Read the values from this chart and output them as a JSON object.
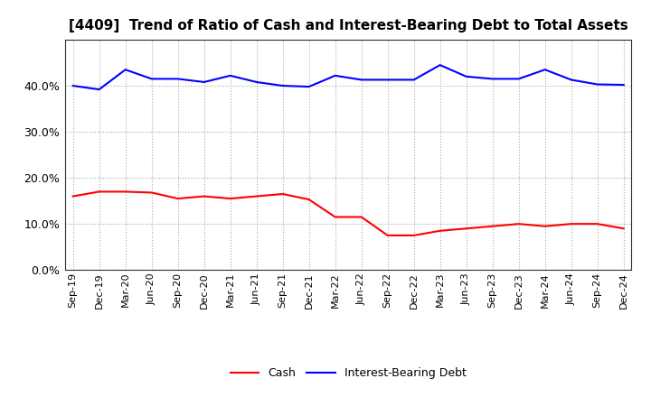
{
  "title": "[4409]  Trend of Ratio of Cash and Interest-Bearing Debt to Total Assets",
  "x_labels": [
    "Sep-19",
    "Dec-19",
    "Mar-20",
    "Jun-20",
    "Sep-20",
    "Dec-20",
    "Mar-21",
    "Jun-21",
    "Sep-21",
    "Dec-21",
    "Mar-22",
    "Jun-22",
    "Sep-22",
    "Dec-22",
    "Mar-23",
    "Jun-23",
    "Sep-23",
    "Dec-23",
    "Mar-24",
    "Jun-24",
    "Sep-24",
    "Dec-24"
  ],
  "cash": [
    0.16,
    0.17,
    0.17,
    0.168,
    0.155,
    0.16,
    0.155,
    0.16,
    0.165,
    0.153,
    0.115,
    0.115,
    0.075,
    0.075,
    0.085,
    0.09,
    0.095,
    0.1,
    0.095,
    0.1,
    0.1,
    0.09
  ],
  "debt": [
    0.4,
    0.392,
    0.435,
    0.415,
    0.415,
    0.408,
    0.422,
    0.408,
    0.4,
    0.398,
    0.422,
    0.413,
    0.413,
    0.413,
    0.445,
    0.42,
    0.415,
    0.415,
    0.435,
    0.413,
    0.403,
    0.402
  ],
  "cash_color": "#ff0000",
  "debt_color": "#0000ff",
  "background_color": "#ffffff",
  "plot_bg_color": "#ffffff",
  "grid_color": "#aaaaaa",
  "ylim": [
    0.0,
    0.5
  ],
  "yticks": [
    0.0,
    0.1,
    0.2,
    0.3,
    0.4
  ],
  "legend_cash": "Cash",
  "legend_debt": "Interest-Bearing Debt",
  "title_fontsize": 11,
  "tick_fontsize": 8,
  "line_width": 1.5
}
